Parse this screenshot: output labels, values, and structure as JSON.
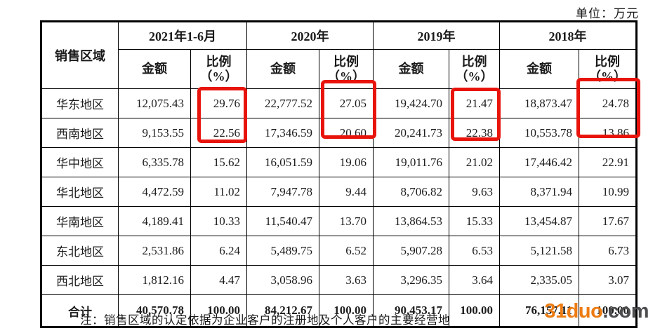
{
  "unit_label": "单位：万元",
  "table": {
    "region_header": "销售区域",
    "amount_label": "金额",
    "ratio_label_line1": "比例",
    "ratio_label_line2": "（%）",
    "periods": [
      {
        "label": "2021年1-6月"
      },
      {
        "label": "2020年"
      },
      {
        "label": "2019年"
      },
      {
        "label": "2018年"
      }
    ],
    "rows": [
      {
        "region": "华东地区",
        "total": false,
        "values": [
          "12,075.43",
          "29.76",
          "22,777.52",
          "27.05",
          "19,424.70",
          "21.47",
          "18,873.47",
          "24.78"
        ]
      },
      {
        "region": "西南地区",
        "total": false,
        "values": [
          "9,153.55",
          "22.56",
          "17,346.59",
          "20.60",
          "20,241.73",
          "22.38",
          "10,553.78",
          "13.86"
        ]
      },
      {
        "region": "华中地区",
        "total": false,
        "values": [
          "6,335.78",
          "15.62",
          "16,051.59",
          "19.06",
          "19,011.76",
          "21.02",
          "17,446.42",
          "22.91"
        ]
      },
      {
        "region": "华北地区",
        "total": false,
        "values": [
          "4,472.59",
          "11.02",
          "7,947.78",
          "9.44",
          "8,706.82",
          "9.63",
          "8,371.94",
          "10.99"
        ]
      },
      {
        "region": "华南地区",
        "total": false,
        "values": [
          "4,189.41",
          "10.33",
          "11,540.47",
          "13.70",
          "13,864.53",
          "15.33",
          "13,454.87",
          "17.67"
        ]
      },
      {
        "region": "东北地区",
        "total": false,
        "values": [
          "2,531.86",
          "6.24",
          "5,489.75",
          "6.52",
          "5,907.28",
          "6.53",
          "5,121.58",
          "6.73"
        ]
      },
      {
        "region": "西北地区",
        "total": false,
        "values": [
          "1,812.16",
          "4.47",
          "3,058.96",
          "3.63",
          "3,296.35",
          "3.64",
          "2,335.05",
          "3.07"
        ]
      },
      {
        "region": "合计",
        "total": true,
        "values": [
          "40,570.78",
          "100.00",
          "84,212.67",
          "100.00",
          "90,453.17",
          "100.00",
          "76,157.11",
          "100.00"
        ]
      }
    ]
  },
  "highlights": [
    {
      "period": "2021年1-6月",
      "column": "比例（%）",
      "rows": [
        "华东地区",
        "西南地区"
      ],
      "values": [
        "29.76",
        "22.56"
      ]
    },
    {
      "period": "2020年",
      "column": "比例（%）",
      "rows": [
        "华东地区",
        "西南地区"
      ],
      "values": [
        "27.05",
        "20.60"
      ]
    },
    {
      "period": "2019年",
      "column": "比例（%）",
      "rows": [
        "华东地区",
        "西南地区"
      ],
      "values": [
        "21.47",
        "22.38"
      ]
    },
    {
      "period": "2018年",
      "column": "比例（%）",
      "rows": [
        "华东地区",
        "西南地区"
      ],
      "values": [
        "24.78",
        "13.86"
      ]
    }
  ],
  "note": "注：销售区域的认定依据为企业客户的注册地及个人客户的主要经营地",
  "watermark": {
    "brand": "31duo",
    "suffix": ".com"
  },
  "colors": {
    "highlight": "#e8140c",
    "watermark_brand": "#ed7c11",
    "watermark_suffix": "#4d4d4f",
    "border": "#000000",
    "text": "#1a1a1a"
  }
}
